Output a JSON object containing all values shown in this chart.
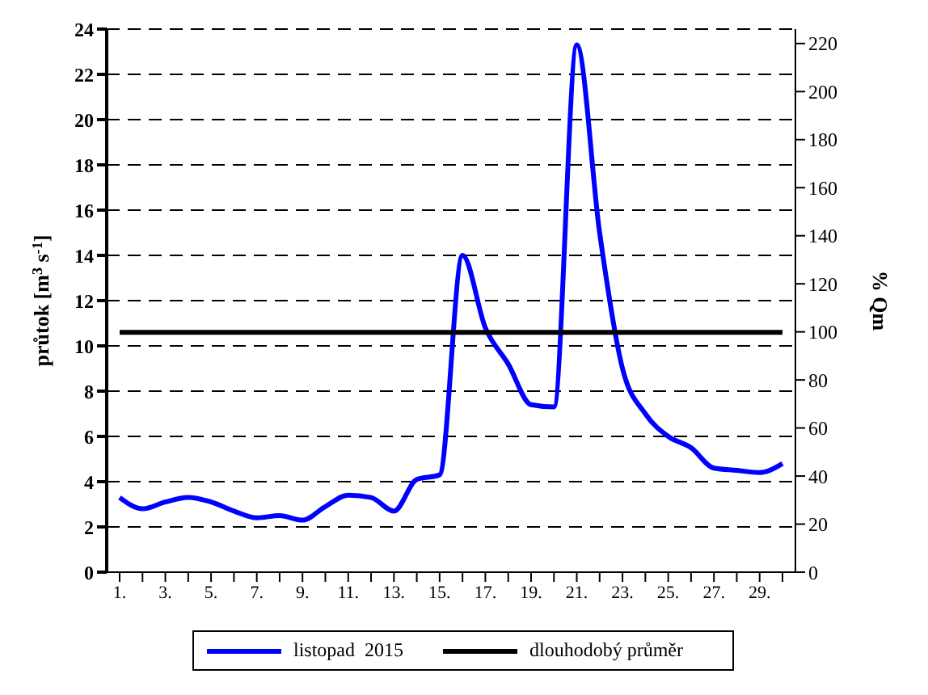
{
  "chart_data": {
    "type": "line",
    "ylabel": "průtok [m$^{3}$ s$^{-1}$]",
    "y2label": "% Qm",
    "categories": [
      "1.",
      null,
      "3.",
      null,
      "5.",
      null,
      "7.",
      null,
      "9.",
      null,
      "11.",
      null,
      "13.",
      null,
      "15.",
      null,
      "17.",
      null,
      "19.",
      null,
      "21.",
      null,
      "23.",
      null,
      "25.",
      null,
      "27.",
      null,
      "29.",
      null
    ],
    "series": [
      {
        "name": "listopad  2015",
        "color": "#0000ff",
        "values": [
          3.3,
          2.8,
          3.1,
          3.3,
          3.1,
          2.7,
          2.4,
          2.5,
          2.3,
          2.9,
          3.4,
          3.3,
          2.7,
          4.1,
          4.3,
          14.0,
          10.8,
          9.2,
          7.4,
          7.3,
          23.3,
          15.0,
          9.0,
          7.0,
          6.0,
          5.5,
          4.6,
          4.5,
          4.4,
          4.8
        ]
      },
      {
        "name": "dlouhodobý průměr",
        "color": "#000000",
        "values": [
          10.6,
          10.6,
          10.6,
          10.6,
          10.6,
          10.6,
          10.6,
          10.6,
          10.6,
          10.6,
          10.6,
          10.6,
          10.6,
          10.6,
          10.6,
          10.6,
          10.6,
          10.6,
          10.6,
          10.6,
          10.6,
          10.6,
          10.6,
          10.6,
          10.6,
          10.6,
          10.6,
          10.6,
          10.6,
          10.6
        ]
      }
    ],
    "ylim": [
      0,
      24
    ],
    "yticks": [
      0,
      2,
      4,
      6,
      8,
      10,
      12,
      14,
      16,
      18,
      20,
      22,
      24
    ],
    "y2lim": [
      0,
      226
    ],
    "y2ticks": [
      0,
      20,
      40,
      60,
      80,
      100,
      120,
      140,
      160,
      180,
      200,
      220
    ],
    "grid": "y",
    "legend": "bottom",
    "marker": "none",
    "line_style": "solid"
  }
}
